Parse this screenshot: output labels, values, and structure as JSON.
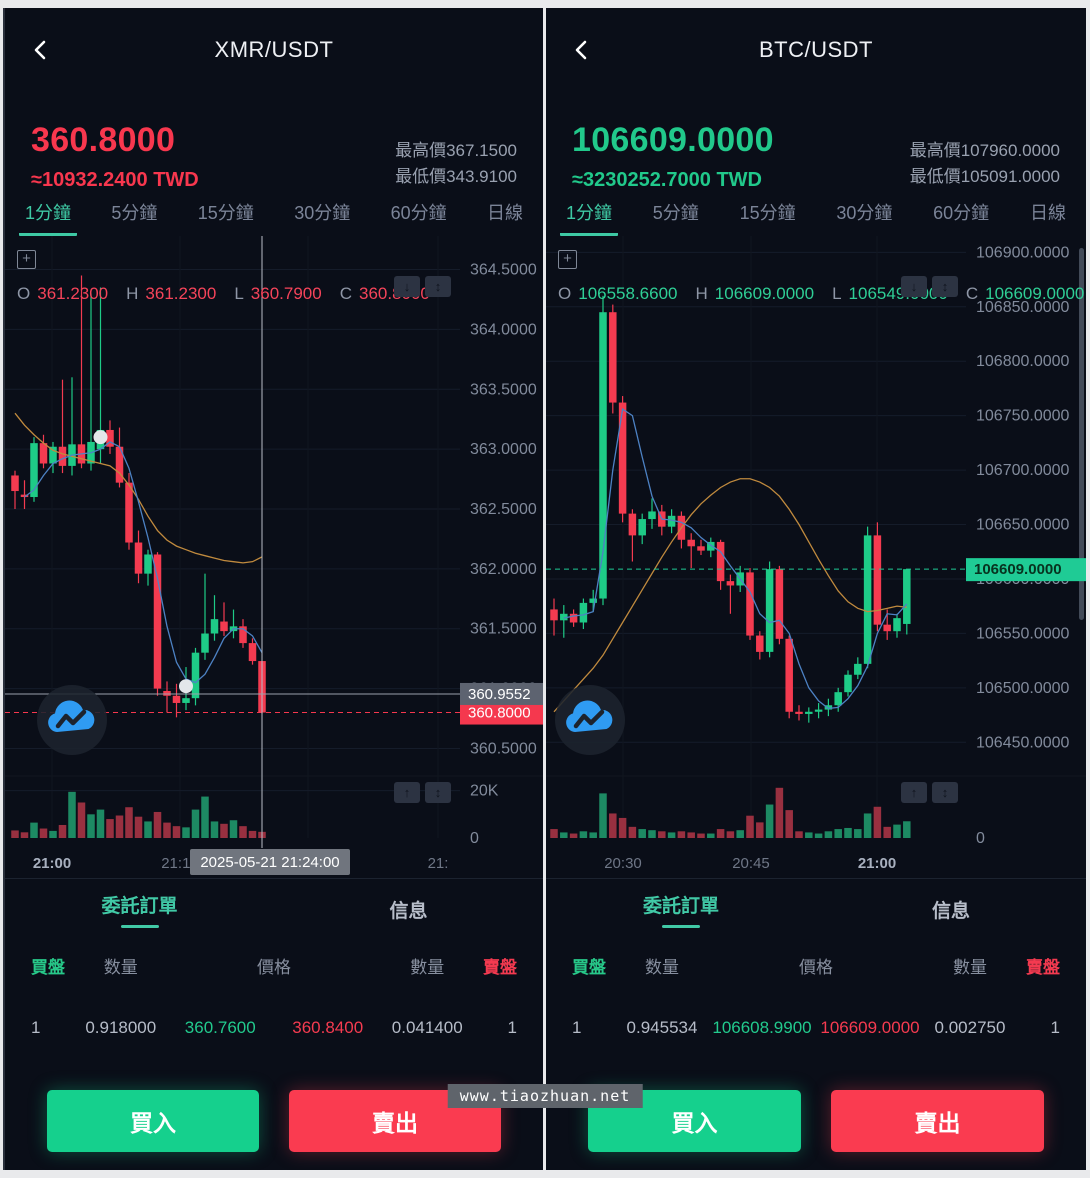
{
  "watermark": "www.tiaozhuan.net",
  "icons": {
    "plus": "+",
    "arrow_down": "↓",
    "arrow_up": "↑",
    "arrow_updown": "↕"
  },
  "panels": [
    {
      "title": "XMR/USDT",
      "price": "360.8000",
      "approx": "≈10932.2400 TWD",
      "trend_color": "#f8374e",
      "high_label": "最高價367.1500",
      "low_label": "最低價343.9100",
      "timeframes": [
        "1分鐘",
        "5分鐘",
        "15分鐘",
        "30分鐘",
        "60分鐘",
        "日線"
      ],
      "active_timeframe": 0,
      "ohlc_items": [
        [
          "O",
          "361.2300"
        ],
        [
          "H",
          "361.2300"
        ],
        [
          "L",
          "360.7900"
        ],
        [
          "C",
          "360.8000"
        ]
      ],
      "ohlc_color": "#f5445a",
      "chart_icons_price": [
        "↓",
        "↕"
      ],
      "chart_icons_vol": [
        "↑",
        "↕"
      ],
      "order_tabs": [
        "委託訂單",
        "信息"
      ],
      "active_order_tab": 0,
      "book": {
        "headers": [
          "買盤",
          "数量",
          "價格",
          "數量",
          "賣盤"
        ],
        "row": {
          "buy_count": "1",
          "buy_qty": "0.918000",
          "buy_price": "360.7600",
          "sell_price": "360.8400",
          "sell_qty": "0.041400",
          "sell_count": "1"
        }
      },
      "buy_label": "買入",
      "sell_label": "賣出"
    },
    {
      "title": "BTC/USDT",
      "price": "106609.0000",
      "approx": "≈3230252.7000 TWD",
      "trend_color": "#21c98b",
      "high_label": "最高價107960.0000",
      "low_label": "最低價105091.0000",
      "timeframes": [
        "1分鐘",
        "5分鐘",
        "15分鐘",
        "30分鐘",
        "60分鐘",
        "日線"
      ],
      "active_timeframe": 0,
      "ohlc_items": [
        [
          "O",
          "106558.6600"
        ],
        [
          "H",
          "106609.0000"
        ],
        [
          "L",
          "106549.0000"
        ],
        [
          "C",
          "106609.0000"
        ]
      ],
      "ohlc_color": "#2fcf96",
      "chart_icons_price": [
        "↓",
        "↕"
      ],
      "chart_icons_vol": [
        "↑",
        "↕"
      ],
      "order_tabs": [
        "委託訂單",
        "信息"
      ],
      "active_order_tab": 0,
      "book": {
        "headers": [
          "買盤",
          "数量",
          "價格",
          "數量",
          "賣盤"
        ],
        "row": {
          "buy_count": "1",
          "buy_qty": "0.945534",
          "buy_price": "106608.9900",
          "sell_price": "106609.0000",
          "sell_qty": "0.002750",
          "sell_count": "1"
        }
      },
      "buy_label": "買入",
      "sell_label": "賣出"
    }
  ],
  "chart_data": [
    {
      "type": "candlestick",
      "pair": "XMR/USDT",
      "interval": "1分鐘",
      "ylim": [
        360.27,
        364.78
      ],
      "y_ticks": [
        {
          "v": 364.5,
          "label": "364.5000"
        },
        {
          "v": 364.0,
          "label": "364.0000"
        },
        {
          "v": 363.5,
          "label": "363.5000"
        },
        {
          "v": 363.0,
          "label": "363.0000"
        },
        {
          "v": 362.5,
          "label": "362.5000"
        },
        {
          "v": 362.0,
          "label": "362.0000"
        },
        {
          "v": 361.5,
          "label": "361.5000"
        },
        {
          "v": 361.0,
          "label": "361.0000"
        },
        {
          "v": 360.5,
          "label": "360.5000"
        }
      ],
      "x_labels": [
        {
          "t": "21:00",
          "x": 47,
          "strong": true
        },
        {
          "t": "21:15",
          "x": 175
        },
        {
          "t": "21:30",
          "x": 303
        },
        {
          "t": "21:",
          "x": 433
        }
      ],
      "candles": [
        [
          362.78,
          362.82,
          362.5,
          362.65
        ],
        [
          362.62,
          362.74,
          362.5,
          362.6
        ],
        [
          362.6,
          363.1,
          362.56,
          363.05
        ],
        [
          363.05,
          363.12,
          362.84,
          362.88
        ],
        [
          362.88,
          363.06,
          362.8,
          363.02
        ],
        [
          363.02,
          363.58,
          362.8,
          362.86
        ],
        [
          362.86,
          363.6,
          362.78,
          363.04
        ],
        [
          363.04,
          364.45,
          362.84,
          362.88
        ],
        [
          362.88,
          364.3,
          362.82,
          363.06
        ],
        [
          363.0,
          364.35,
          362.88,
          363.16
        ],
        [
          363.16,
          363.24,
          362.96,
          363.02
        ],
        [
          363.02,
          363.18,
          362.68,
          362.72
        ],
        [
          362.72,
          362.8,
          362.16,
          362.22
        ],
        [
          362.22,
          362.32,
          361.88,
          361.96
        ],
        [
          361.96,
          362.16,
          361.86,
          362.12
        ],
        [
          362.12,
          362.14,
          360.94,
          361.0
        ],
        [
          360.98,
          361.06,
          360.8,
          360.94
        ],
        [
          360.94,
          361.04,
          360.76,
          360.88
        ],
        [
          360.88,
          361.18,
          360.82,
          360.92
        ],
        [
          360.92,
          361.34,
          360.86,
          361.3
        ],
        [
          361.3,
          361.96,
          361.24,
          361.46
        ],
        [
          361.46,
          361.78,
          361.4,
          361.58
        ],
        [
          361.56,
          361.72,
          361.44,
          361.48
        ],
        [
          361.48,
          361.66,
          361.42,
          361.52
        ],
        [
          361.52,
          361.58,
          361.34,
          361.38
        ],
        [
          361.38,
          361.42,
          361.2,
          361.23
        ],
        [
          361.23,
          361.23,
          360.79,
          360.8
        ]
      ],
      "volumes": [
        3200,
        2400,
        6500,
        4000,
        3000,
        5500,
        19500,
        15000,
        10000,
        12000,
        8000,
        9500,
        13000,
        9000,
        7000,
        11000,
        6500,
        5000,
        4500,
        12000,
        17500,
        7000,
        6000,
        7500,
        5000,
        3000,
        2600
      ],
      "vol_ylim": [
        0,
        24500
      ],
      "vol_ticks": [
        {
          "v": 20000,
          "label": "20K"
        },
        {
          "v": 0,
          "label": "0"
        }
      ],
      "ma_fast": [
        null,
        362.6,
        362.66,
        362.78,
        362.88,
        362.92,
        362.95,
        362.96,
        362.97,
        363.0,
        363.06,
        363.02,
        362.84,
        362.56,
        362.26,
        361.92,
        361.52,
        361.22,
        361.08,
        361.05,
        361.12,
        361.26,
        361.42,
        361.5,
        361.5,
        361.44,
        361.3
      ],
      "ma_slow": [
        363.3,
        363.2,
        363.12,
        363.05,
        362.99,
        362.96,
        362.94,
        362.92,
        362.9,
        362.88,
        362.86,
        362.8,
        362.7,
        362.58,
        362.44,
        362.32,
        362.24,
        362.19,
        362.16,
        362.13,
        362.11,
        362.09,
        362.07,
        362.06,
        362.05,
        362.06,
        362.1
      ],
      "last_price": {
        "v": 360.8,
        "label": "360.8000",
        "color": "#f5384e",
        "text": "#ffffff",
        "bold": false
      },
      "crosshair": {
        "i": 26,
        "p": 360.9552,
        "p_label": "360.9552",
        "t_label": "2025-05-21 21:24:00"
      },
      "markers": [
        {
          "i": 9,
          "p": 363.1
        },
        {
          "i": 18,
          "p": 361.02
        }
      ],
      "colors": {
        "up": "#1ecb87",
        "down": "#f43b50",
        "vol_up": "#1d8a63",
        "vol_down": "#993040",
        "ma_fast": "#4d82c4",
        "ma_slow": "#c08a3e",
        "grid": "#151c2a",
        "axis_text": "#828b9c"
      }
    },
    {
      "type": "candlestick",
      "pair": "BTC/USDT",
      "interval": "1分鐘",
      "ylim": [
        106419,
        106915
      ],
      "y_ticks": [
        {
          "v": 106900,
          "label": "106900.0000"
        },
        {
          "v": 106850,
          "label": "106850.0000"
        },
        {
          "v": 106800,
          "label": "106800.0000"
        },
        {
          "v": 106750,
          "label": "106750.0000"
        },
        {
          "v": 106700,
          "label": "106700.0000"
        },
        {
          "v": 106650,
          "label": "106650.0000"
        },
        {
          "v": 106600,
          "label": "106600.0000"
        },
        {
          "v": 106550,
          "label": "106550.0000"
        },
        {
          "v": 106500,
          "label": "106500.0000"
        },
        {
          "v": 106450,
          "label": "106450.0000"
        }
      ],
      "x_labels": [
        {
          "t": "20:30",
          "x": 77
        },
        {
          "t": "20:45",
          "x": 205
        },
        {
          "t": "21:00",
          "x": 331,
          "strong": true
        }
      ],
      "candles": [
        [
          106572,
          106582,
          106548,
          106562
        ],
        [
          106562,
          106576,
          106546,
          106568
        ],
        [
          106568,
          106572,
          106556,
          106560
        ],
        [
          106560,
          106582,
          106554,
          106578
        ],
        [
          106578,
          106590,
          106570,
          106582
        ],
        [
          106582,
          106860,
          106576,
          106845
        ],
        [
          106845,
          106852,
          106752,
          106762
        ],
        [
          106762,
          106768,
          106652,
          106660
        ],
        [
          106660,
          106664,
          106616,
          106640
        ],
        [
          106640,
          106660,
          106632,
          106655
        ],
        [
          106655,
          106674,
          106646,
          106662
        ],
        [
          106662,
          106668,
          106640,
          106648
        ],
        [
          106648,
          106664,
          106642,
          106658
        ],
        [
          106658,
          106662,
          106628,
          106636
        ],
        [
          106636,
          106642,
          106610,
          106630
        ],
        [
          106630,
          106636,
          106622,
          106626
        ],
        [
          106626,
          106638,
          106620,
          106634
        ],
        [
          106634,
          106636,
          106590,
          106598
        ],
        [
          106598,
          106604,
          106568,
          106594
        ],
        [
          106594,
          106612,
          106588,
          106606
        ],
        [
          106606,
          106610,
          106544,
          106548
        ],
        [
          106548,
          106552,
          106526,
          106533
        ],
        [
          106533,
          106616,
          106528,
          106609
        ],
        [
          106609,
          106612,
          106540,
          106545
        ],
        [
          106545,
          106548,
          106472,
          106478
        ],
        [
          106478,
          106484,
          106470,
          106476
        ],
        [
          106476,
          106482,
          106468,
          106478
        ],
        [
          106478,
          106486,
          106472,
          106480
        ],
        [
          106480,
          106490,
          106474,
          106484
        ],
        [
          106484,
          106500,
          106478,
          106496
        ],
        [
          106496,
          106516,
          106492,
          106512
        ],
        [
          106512,
          106528,
          106508,
          106522
        ],
        [
          106522,
          106648,
          106518,
          106640
        ],
        [
          106640,
          106652,
          106552,
          106558
        ],
        [
          106558,
          106572,
          106544,
          106552
        ],
        [
          106552,
          106568,
          106546,
          106564
        ],
        [
          106558.66,
          106609,
          106549,
          106609
        ]
      ],
      "volumes": [
        8,
        5,
        4,
        6,
        5,
        40,
        22,
        18,
        10,
        8,
        7,
        6,
        5,
        6,
        5,
        4,
        4,
        8,
        6,
        7,
        20,
        14,
        30,
        45,
        25,
        6,
        5,
        4,
        6,
        8,
        9,
        8,
        22,
        28,
        10,
        12,
        15
      ],
      "vol_ylim": [
        0,
        52
      ],
      "vol_ticks": [
        {
          "v": 0,
          "label": "0"
        }
      ],
      "ma_fast": [
        null,
        106564,
        106566,
        106567,
        106570,
        106625,
        106700,
        106756,
        106750,
        106712,
        106676,
        106655,
        106654,
        106652,
        106647,
        106638,
        106631,
        106625,
        106612,
        106600,
        106588,
        106568,
        106560,
        106562,
        106550,
        106522,
        106500,
        106488,
        106481,
        106482,
        106490,
        106502,
        106520,
        106550,
        106568,
        106567,
        106577
      ],
      "ma_slow": [
        106478,
        106488,
        106498,
        106508,
        106518,
        106530,
        106545,
        106560,
        106575,
        106590,
        106605,
        106620,
        106634,
        106647,
        106659,
        106669,
        106677,
        106684,
        106689,
        106692,
        106692,
        106689,
        106684,
        106676,
        106664,
        106650,
        106634,
        106618,
        106603,
        106589,
        106579,
        106573,
        106570,
        106571,
        106573,
        106575,
        106574
      ],
      "last_price": {
        "v": 106609,
        "label": "106609.0000",
        "color": "#1fcb95",
        "text": "#07321f",
        "bold": true
      },
      "crosshair": null,
      "markers": [],
      "colors": {
        "up": "#1ecb87",
        "down": "#f43b50",
        "vol_up": "#1d8a63",
        "vol_down": "#993040",
        "ma_fast": "#4d82c4",
        "ma_slow": "#c08a3e",
        "grid": "#151c2a",
        "axis_text": "#828b9c"
      }
    }
  ]
}
